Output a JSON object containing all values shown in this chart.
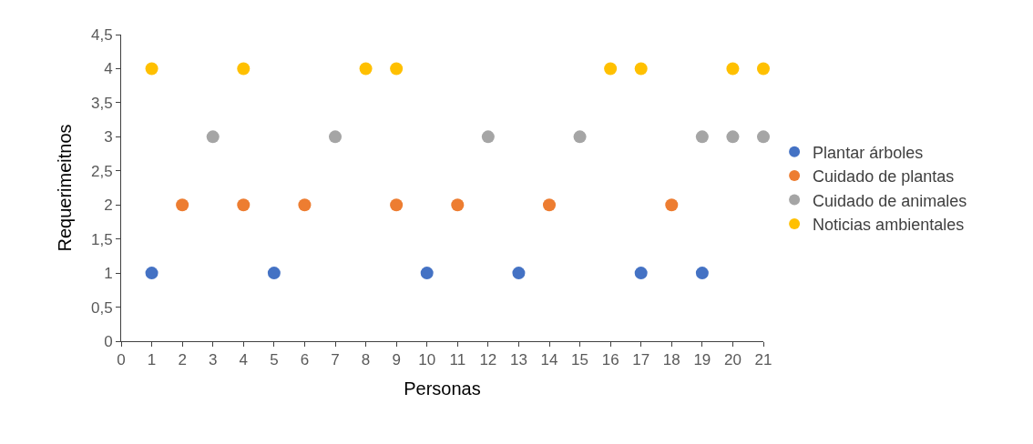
{
  "chart_data": {
    "type": "scatter",
    "xlabel": "Personas",
    "ylabel": "Requerimeitnos",
    "series": [
      {
        "name": "Plantar árboles",
        "color": "#4472c4",
        "x": [
          1,
          5,
          10,
          13,
          17,
          19
        ],
        "values": [
          1,
          1,
          1,
          1,
          1,
          1
        ]
      },
      {
        "name": "Cuidado de plantas",
        "color": "#ed7d31",
        "x": [
          2,
          4,
          6,
          9,
          11,
          14,
          18
        ],
        "values": [
          2,
          2,
          2,
          2,
          2,
          2,
          2
        ]
      },
      {
        "name": "Cuidado de animales",
        "color": "#a5a5a5",
        "x": [
          3,
          7,
          12,
          15,
          19,
          20,
          21
        ],
        "values": [
          3,
          3,
          3,
          3,
          3,
          3,
          3
        ]
      },
      {
        "name": "Noticias ambientales",
        "color": "#ffc000",
        "x": [
          1,
          4,
          8,
          9,
          16,
          17,
          20,
          21
        ],
        "values": [
          4,
          4,
          4,
          4,
          4,
          4,
          4,
          4
        ]
      }
    ],
    "xlim": [
      0,
      21
    ],
    "xticks": [
      0,
      1,
      2,
      3,
      4,
      5,
      6,
      7,
      8,
      9,
      10,
      11,
      12,
      13,
      14,
      15,
      16,
      17,
      18,
      19,
      20,
      21
    ],
    "ylim": [
      0,
      4.5
    ],
    "yticks": [
      0,
      {
        "value": 0.5,
        "label": "0,5"
      },
      1,
      {
        "value": 1.5,
        "label": "1,5"
      },
      2,
      {
        "value": 2.5,
        "label": "2,5"
      },
      3,
      {
        "value": 3.5,
        "label": "3,5"
      },
      4,
      {
        "value": 4.5,
        "label": "4,5"
      }
    ],
    "marker": "circle",
    "legend": "right",
    "grid": false
  }
}
